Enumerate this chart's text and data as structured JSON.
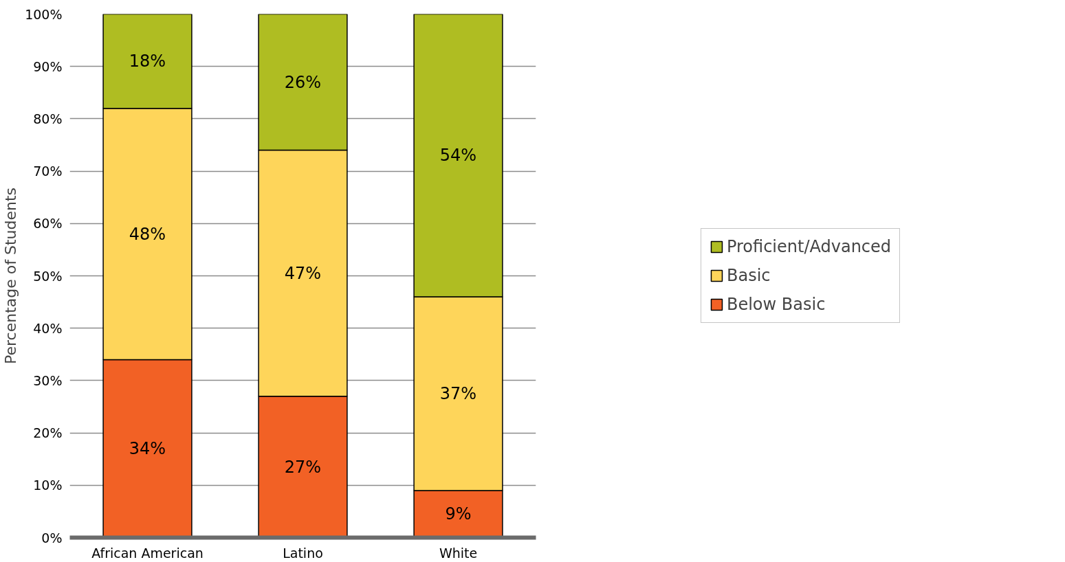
{
  "chart_data": {
    "type": "bar",
    "stacked": true,
    "ylabel": "Percentage of Students",
    "categories": [
      "African American",
      "Latino",
      "White"
    ],
    "series": [
      {
        "name": "Below Basic",
        "color": "#f26125",
        "values": [
          34,
          27,
          9
        ],
        "value_labels": [
          "34%",
          "27%",
          "9%"
        ]
      },
      {
        "name": "Basic",
        "color": "#fed55a",
        "values": [
          48,
          47,
          37
        ],
        "value_labels": [
          "48%",
          "47%",
          "37%"
        ]
      },
      {
        "name": "Proficient/Advanced",
        "color": "#afbd22",
        "values": [
          18,
          26,
          54
        ],
        "value_labels": [
          "18%",
          "26%",
          "54%"
        ]
      }
    ],
    "ylim": [
      0,
      100
    ],
    "yticks": [
      {
        "value": 0,
        "label": "0%"
      },
      {
        "value": 10,
        "label": "10%"
      },
      {
        "value": 20,
        "label": "20%"
      },
      {
        "value": 30,
        "label": "30%"
      },
      {
        "value": 40,
        "label": "40%"
      },
      {
        "value": 50,
        "label": "50%"
      },
      {
        "value": 60,
        "label": "60%"
      },
      {
        "value": 70,
        "label": "70%"
      },
      {
        "value": 80,
        "label": "80%"
      },
      {
        "value": 90,
        "label": "90%"
      },
      {
        "value": 100,
        "label": "100%"
      }
    ],
    "grid": "y",
    "legend": "right"
  }
}
